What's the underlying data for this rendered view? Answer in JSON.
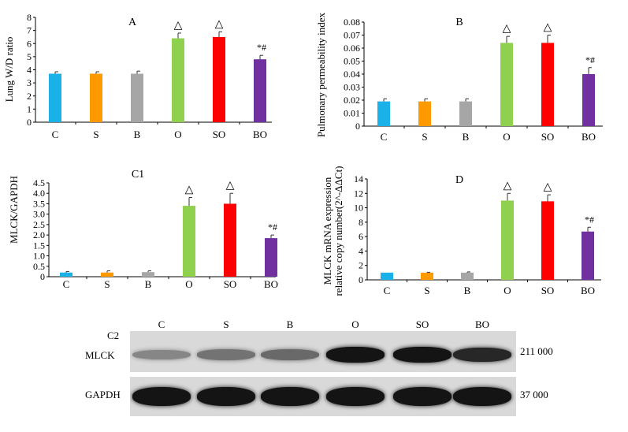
{
  "chart_data": [
    {
      "panel": "A",
      "type": "bar",
      "title": "A",
      "ylabel": "Lung W/D ratio",
      "categories": [
        "C",
        "S",
        "B",
        "O",
        "SO",
        "BO"
      ],
      "values": [
        3.7,
        3.7,
        3.7,
        6.4,
        6.5,
        4.8
      ],
      "errors": [
        0.15,
        0.15,
        0.2,
        0.4,
        0.4,
        0.3
      ],
      "annotations": [
        "",
        "",
        "",
        "△",
        "△",
        "*#"
      ],
      "ylim": [
        0,
        8
      ],
      "yticks": [
        "0",
        "1",
        "2",
        "3",
        "4",
        "5",
        "6",
        "7",
        "8"
      ],
      "colors": [
        "#1ab0e8",
        "#ff9900",
        "#a6a6a6",
        "#8fd14f",
        "#ff0000",
        "#7030a0"
      ]
    },
    {
      "panel": "B",
      "type": "bar",
      "title": "B",
      "ylabel": "Pulmonary permeability index",
      "categories": [
        "C",
        "S",
        "B",
        "O",
        "SO",
        "BO"
      ],
      "values": [
        0.019,
        0.019,
        0.019,
        0.064,
        0.064,
        0.04
      ],
      "errors": [
        0.002,
        0.002,
        0.002,
        0.005,
        0.006,
        0.005
      ],
      "annotations": [
        "",
        "",
        "",
        "△",
        "△",
        "*#"
      ],
      "ylim": [
        0,
        0.08
      ],
      "yticks": [
        "0",
        "0.01",
        "0.02",
        "0.03",
        "0.04",
        "0.05",
        "0.06",
        "0.07",
        "0.08"
      ],
      "colors": [
        "#1ab0e8",
        "#ff9900",
        "#a6a6a6",
        "#8fd14f",
        "#ff0000",
        "#7030a0"
      ]
    },
    {
      "panel": "C1",
      "type": "bar",
      "title": "C1",
      "ylabel": "MLCK/GAPDH",
      "categories": [
        "C",
        "S",
        "B",
        "O",
        "SO",
        "BO"
      ],
      "values": [
        0.2,
        0.2,
        0.22,
        3.4,
        3.5,
        1.85
      ],
      "errors": [
        0.05,
        0.08,
        0.06,
        0.4,
        0.5,
        0.15
      ],
      "annotations": [
        "",
        "",
        "",
        "△",
        "△",
        "*#"
      ],
      "ylim": [
        0,
        4.5
      ],
      "yticks": [
        "0",
        "0.5",
        "1.0",
        "1.5",
        "2.0",
        "2.5",
        "3.0",
        "3.5",
        "4.0",
        "4.5"
      ],
      "colors": [
        "#1ab0e8",
        "#ff9900",
        "#a6a6a6",
        "#8fd14f",
        "#ff0000",
        "#7030a0"
      ]
    },
    {
      "panel": "D",
      "type": "bar",
      "title": "D",
      "ylabel": "MLCK mRNA expression relative copy number(2^-ΔΔCt)",
      "ylabel_lines": [
        "MLCK mRNA expression",
        "relative copy number(2^-ΔΔCt)"
      ],
      "categories": [
        "C",
        "S",
        "B",
        "O",
        "SO",
        "BO"
      ],
      "values": [
        1.0,
        1.0,
        1.0,
        11.0,
        10.9,
        6.7
      ],
      "errors": [
        0.0,
        0.05,
        0.1,
        1.0,
        0.9,
        0.6
      ],
      "annotations": [
        "",
        "",
        "",
        "△",
        "△",
        "*#"
      ],
      "ylim": [
        0,
        14
      ],
      "yticks": [
        "0",
        "2",
        "4",
        "6",
        "8",
        "10",
        "12",
        "14"
      ],
      "colors": [
        "#1ab0e8",
        "#ff9900",
        "#a6a6a6",
        "#8fd14f",
        "#ff0000",
        "#7030a0"
      ]
    }
  ],
  "blot": {
    "panel_label": "C2",
    "lanes": [
      "C",
      "S",
      "B",
      "O",
      "SO",
      "BO"
    ],
    "rows": [
      {
        "name": "MLCK",
        "size": "211 000",
        "intensity": [
          0.35,
          0.45,
          0.5,
          0.95,
          0.95,
          0.85
        ]
      },
      {
        "name": "GAPDH",
        "size": "37 000",
        "intensity": [
          0.95,
          0.95,
          0.95,
          0.95,
          0.95,
          0.95
        ]
      }
    ]
  }
}
